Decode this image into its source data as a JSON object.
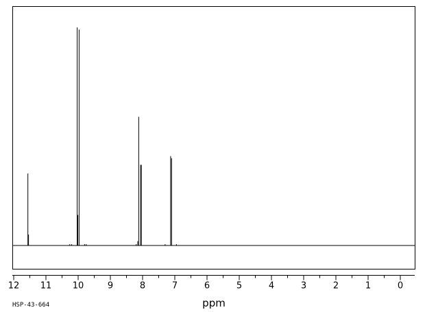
{
  "chart_data": {
    "type": "line",
    "title": "",
    "xlabel": "ppm",
    "ylabel": "",
    "spectrum_code": "HSP-43-664",
    "xlim": [
      12,
      0
    ],
    "x_reversed": true,
    "ylim": [
      0,
      100
    ],
    "grid": false,
    "xticks": [
      "12",
      "11",
      "10",
      "9",
      "8",
      "7",
      "6",
      "5",
      "4",
      "3",
      "2",
      "1",
      "0"
    ],
    "peaks": [
      {
        "ppm": 11.56,
        "height": 33
      },
      {
        "ppm": 11.54,
        "height": 5
      },
      {
        "ppm": 10.26,
        "height": 0.6
      },
      {
        "ppm": 10.2,
        "height": 0.6
      },
      {
        "ppm": 10.03,
        "height": 100
      },
      {
        "ppm": 10.01,
        "height": 14
      },
      {
        "ppm": 9.97,
        "height": 99
      },
      {
        "ppm": 9.8,
        "height": 0.6
      },
      {
        "ppm": 9.75,
        "height": 0.6
      },
      {
        "ppm": 8.2,
        "height": 0.6
      },
      {
        "ppm": 8.15,
        "height": 2
      },
      {
        "ppm": 8.12,
        "height": 59
      },
      {
        "ppm": 8.06,
        "height": 37
      },
      {
        "ppm": 8.04,
        "height": 37
      },
      {
        "ppm": 7.3,
        "height": 0.6
      },
      {
        "ppm": 7.13,
        "height": 41
      },
      {
        "ppm": 7.1,
        "height": 40
      },
      {
        "ppm": 6.95,
        "height": 0.6
      }
    ]
  }
}
